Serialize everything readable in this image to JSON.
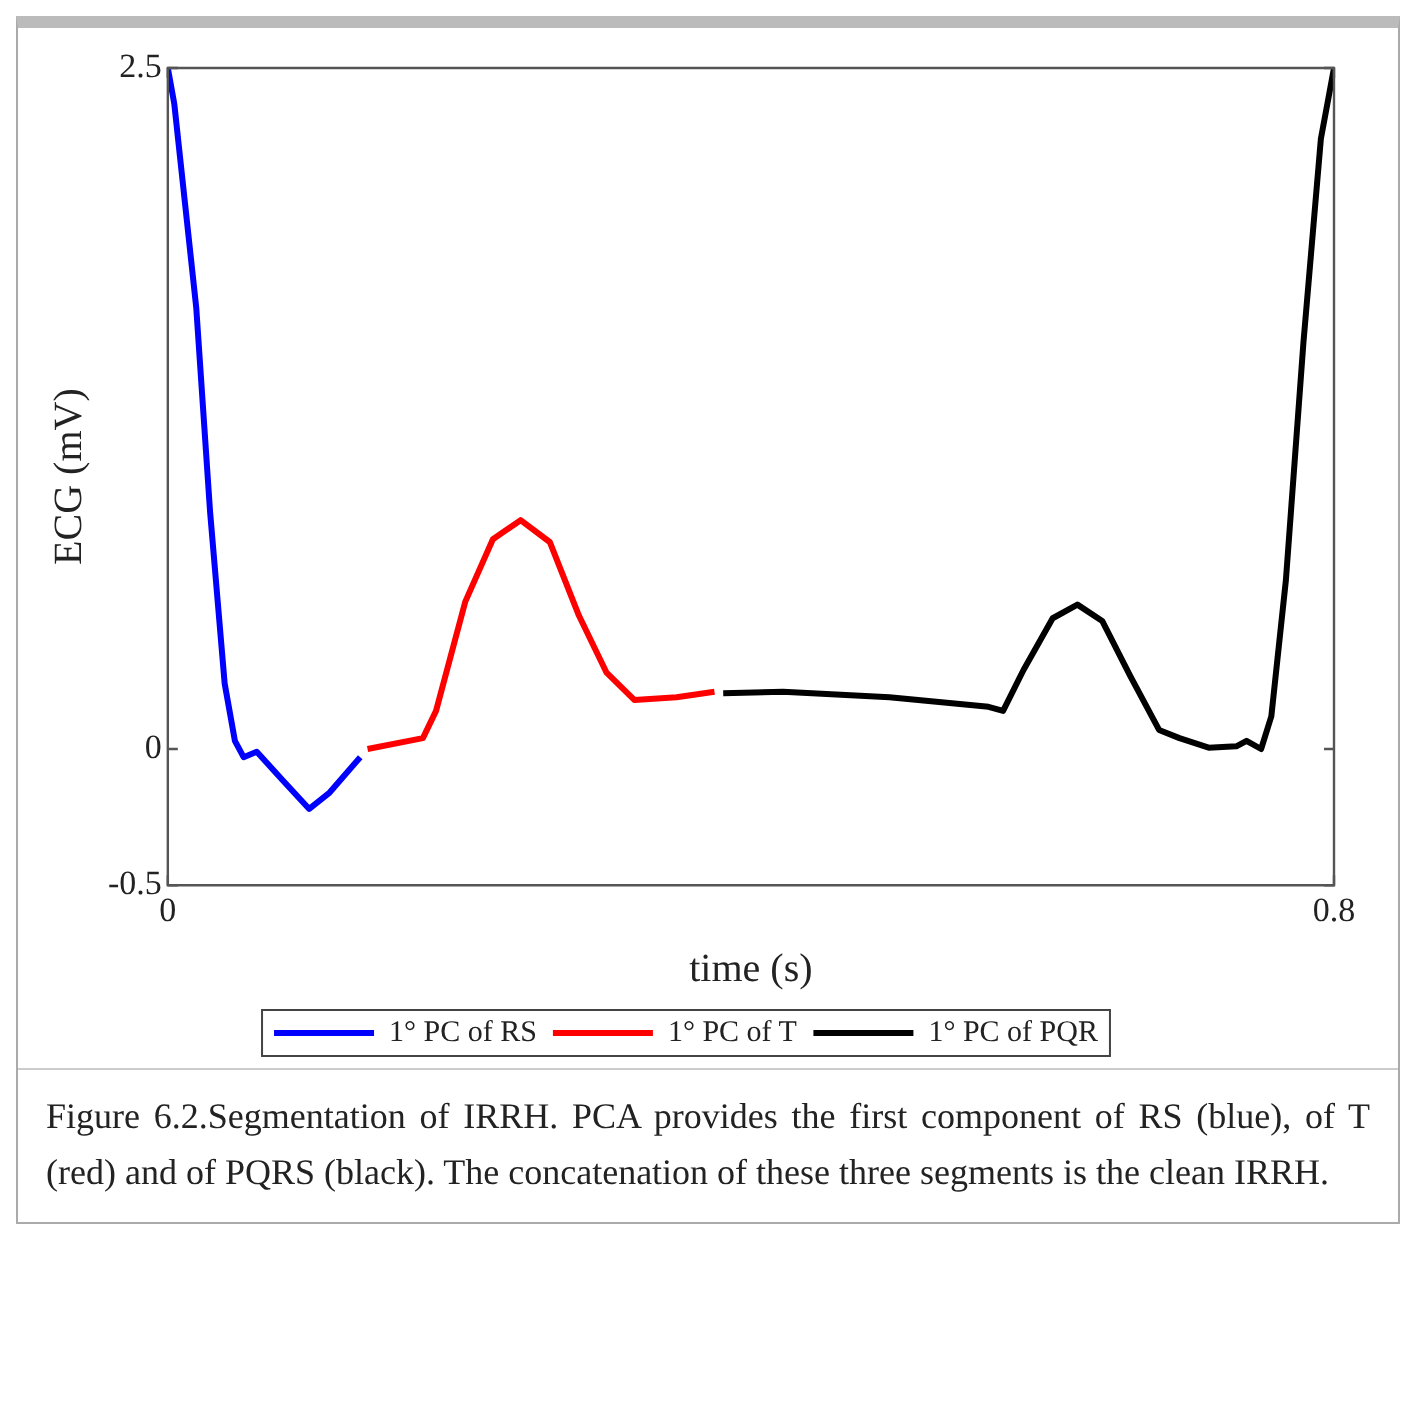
{
  "chart_data": {
    "type": "line",
    "xlabel": "time (s)",
    "ylabel": "ECG (mV)",
    "xlim": [
      0,
      0.8
    ],
    "ylim": [
      -0.5,
      2.5
    ],
    "xticks": [
      0,
      0.8
    ],
    "yticks": [
      -0.5,
      0,
      2.5
    ],
    "grid": false,
    "legend": "bottom",
    "marker": "none",
    "series": [
      {
        "name": "1° PC of RS",
        "color": "#0000ff",
        "x": [
          0,
          0.0044,
          0.0195,
          0.029,
          0.039,
          0.046,
          0.052,
          0.061,
          0.078,
          0.097,
          0.111,
          0.132
        ],
        "values": [
          2.5,
          2.37,
          1.62,
          0.87,
          0.24,
          0.03,
          -0.03,
          -0.01,
          -0.11,
          -0.22,
          -0.16,
          -0.03
        ]
      },
      {
        "name": "1° PC of T",
        "color": "#ff0000",
        "x": [
          0.137,
          0.175,
          0.184,
          0.204,
          0.223,
          0.242,
          0.262,
          0.282,
          0.301,
          0.32,
          0.349,
          0.375
        ],
        "values": [
          0,
          0.04,
          0.14,
          0.54,
          0.77,
          0.84,
          0.76,
          0.49,
          0.28,
          0.18,
          0.19,
          0.21
        ]
      },
      {
        "name": "1° PC of PQR",
        "color": "#000000",
        "x": [
          0.381,
          0.422,
          0.495,
          0.563,
          0.573,
          0.587,
          0.607,
          0.624,
          0.641,
          0.66,
          0.68,
          0.694,
          0.714,
          0.733,
          0.74,
          0.75,
          0.757,
          0.767,
          0.779,
          0.791,
          0.8
        ],
        "values": [
          0.205,
          0.21,
          0.19,
          0.155,
          0.14,
          0.29,
          0.48,
          0.53,
          0.47,
          0.27,
          0.07,
          0.04,
          0.005,
          0.01,
          0.03,
          0,
          0.12,
          0.62,
          1.49,
          2.24,
          2.5
        ]
      }
    ],
    "annotations": [
      "Figure 6.2.Segmentation of IRRH. PCA provides the first component of RS (blue), of T (red) and of PQRS (black). The concatenation of these three segments is the clean IRRH."
    ]
  }
}
